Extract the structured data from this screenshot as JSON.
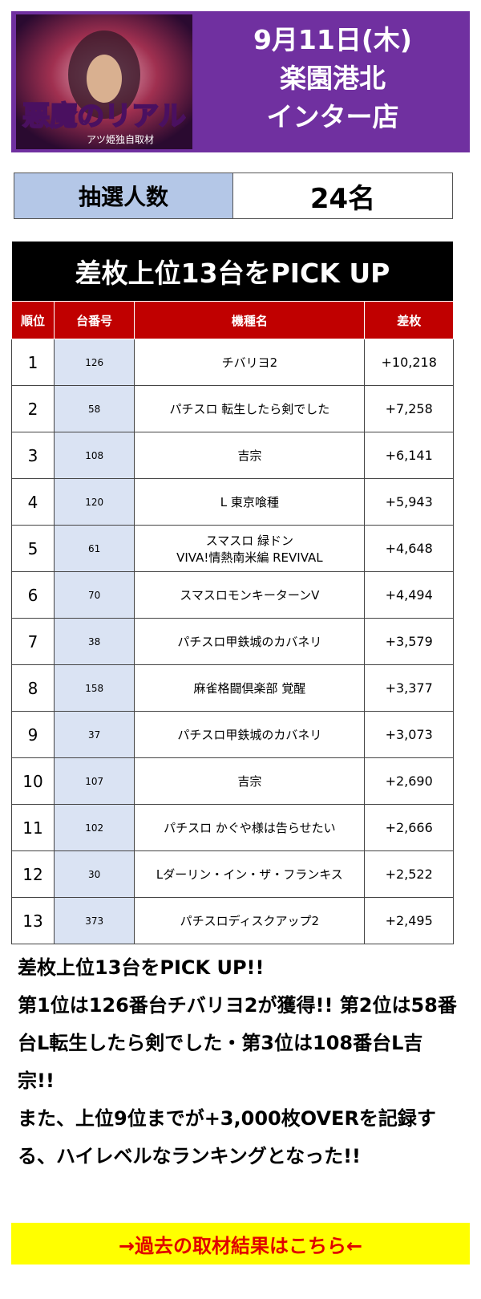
{
  "header": {
    "logo": {
      "title": "悪魔のリアル",
      "subtitle": "アツ姫独自取材"
    },
    "date": "9月11日(木)",
    "store_lines": [
      "楽園港北",
      "インター店"
    ]
  },
  "lottery": {
    "label": "抽選人数",
    "value": "24名"
  },
  "table": {
    "title": "差枚上位13台をPICK UP",
    "columns": [
      "順位",
      "台番号",
      "機種名",
      "差枚"
    ],
    "rows": [
      [
        "1",
        "126",
        "チバリヨ2",
        "+10,218"
      ],
      [
        "2",
        "58",
        "パチスロ 転生したら剣でした",
        "+7,258"
      ],
      [
        "3",
        "108",
        "吉宗",
        "+6,141"
      ],
      [
        "4",
        "120",
        "L 東京喰種",
        "+5,943"
      ],
      [
        "5",
        "61",
        "スマスロ 緑ドン\nVIVA!情熱南米編 REVIVAL",
        "+4,648"
      ],
      [
        "6",
        "70",
        "スマスロモンキーターンV",
        "+4,494"
      ],
      [
        "7",
        "38",
        "パチスロ甲鉄城のカバネリ",
        "+3,579"
      ],
      [
        "8",
        "158",
        "麻雀格闘倶楽部 覚醒",
        "+3,377"
      ],
      [
        "9",
        "37",
        "パチスロ甲鉄城のカバネリ",
        "+3,073"
      ],
      [
        "10",
        "107",
        "吉宗",
        "+2,690"
      ],
      [
        "11",
        "102",
        "パチスロ かぐや様は告らせたい",
        "+2,666"
      ],
      [
        "12",
        "30",
        "Lダーリン・イン・ザ・フランキス",
        "+2,522"
      ],
      [
        "13",
        "373",
        "パチスロディスクアップ2",
        "+2,495"
      ]
    ]
  },
  "summary": [
    "差枚上位13台をPICK UP!!",
    "第1位は126番台チバリヨ2が獲得!! 第2位は58番台L転生したら剣でした・第3位は108番台L吉宗!!",
    "また、上位9位までが+3,000枚OVERを記録する、ハイレベルなランキングとなった!!"
  ],
  "link": "→過去の取材結果はこちら←"
}
